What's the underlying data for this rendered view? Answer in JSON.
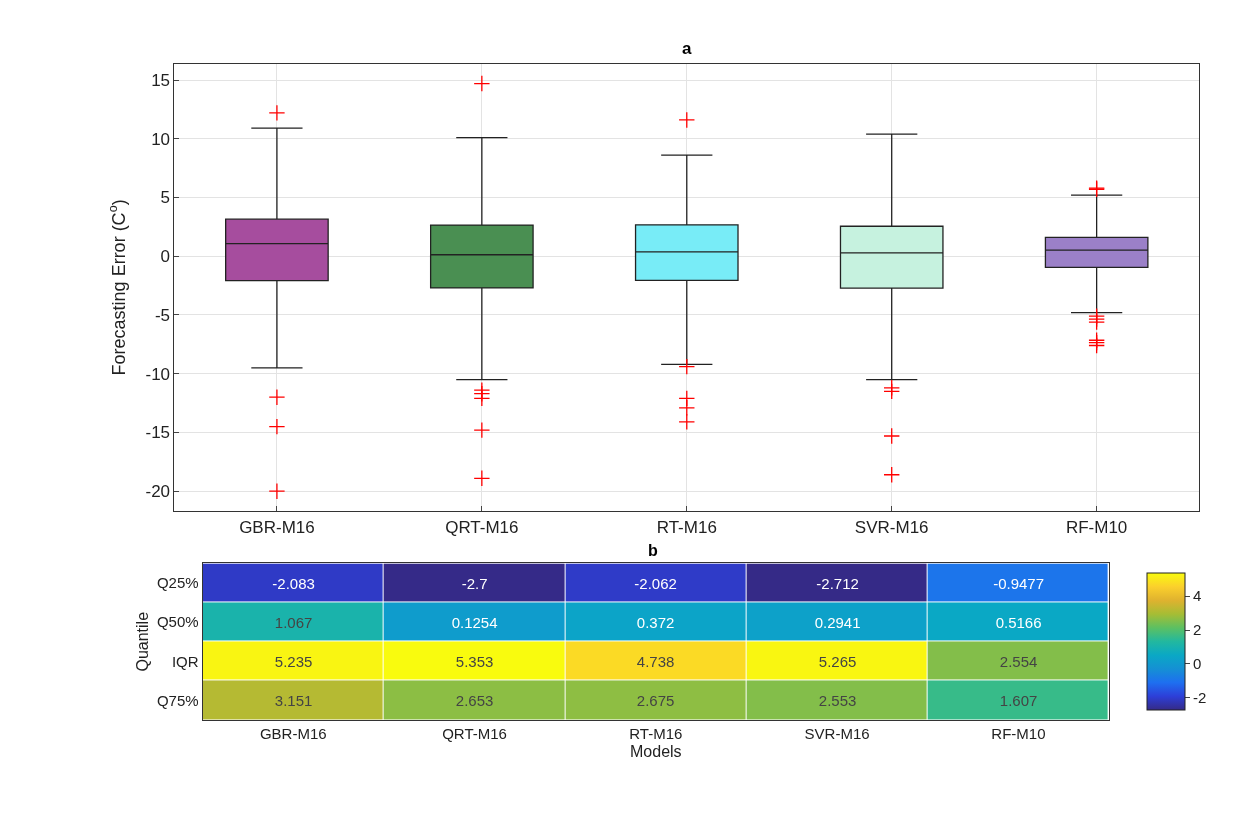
{
  "chart_data": [
    {
      "type": "box",
      "title": "a",
      "ylabel": "Forecasting Error (C$^{o}$)",
      "categories": [
        "GBR-M16",
        "QRT-M16",
        "RT-M16",
        "SVR-M16",
        "RF-M10"
      ],
      "colors": [
        "#a64d9e",
        "#4a8f52",
        "#78ecf7",
        "#c6f2df",
        "#9b80c8"
      ],
      "boxes": [
        {
          "low": -9.5,
          "q1": -2.083,
          "median": 1.067,
          "q3": 3.151,
          "high": 10.9,
          "outliers": [
            12.2,
            -12.0,
            -14.5,
            -20.0
          ]
        },
        {
          "low": -10.5,
          "q1": -2.7,
          "median": 0.1254,
          "q3": 2.653,
          "high": 10.1,
          "outliers": [
            14.7,
            -11.4,
            -11.7,
            -12.1,
            -14.8,
            -18.9
          ]
        },
        {
          "low": -9.2,
          "q1": -2.062,
          "median": 0.372,
          "q3": 2.675,
          "high": 8.6,
          "outliers": [
            11.6,
            -9.4,
            -12.1,
            -12.9,
            -14.1
          ]
        },
        {
          "low": -10.5,
          "q1": -2.712,
          "median": 0.2941,
          "q3": 2.553,
          "high": 10.4,
          "outliers": [
            -11.2,
            -11.5,
            -15.3,
            -18.6
          ]
        },
        {
          "low": -4.8,
          "q1": -0.9477,
          "median": 0.5166,
          "q3": 1.607,
          "high": 5.2,
          "outliers": [
            5.7,
            5.8,
            -5.1,
            -5.35,
            -5.6,
            -7.15,
            -7.35,
            -7.6
          ]
        }
      ],
      "marker": "cross",
      "ylim": [
        -21.7,
        16.4
      ],
      "yticks": [
        -20,
        -15,
        -10,
        -5,
        0,
        5,
        10,
        15
      ],
      "grid": true
    },
    {
      "type": "heatmap",
      "title": "b",
      "xlabel": "Models",
      "ylabel": "Quantile",
      "categories": [
        "GBR-M16",
        "QRT-M16",
        "RT-M16",
        "SVR-M16",
        "RF-M10"
      ],
      "y_categories": [
        "Q25%",
        "Q50%",
        "IQR",
        "Q75%"
      ],
      "cells": [
        [
          -2.083,
          -2.7,
          -2.062,
          -2.712,
          -0.9477
        ],
        [
          1.067,
          0.1254,
          0.372,
          0.2941,
          0.5166
        ],
        [
          5.235,
          5.353,
          4.738,
          5.265,
          2.554
        ],
        [
          3.151,
          2.653,
          2.675,
          2.553,
          1.607
        ]
      ],
      "clim": [
        -2.712,
        5.353
      ],
      "cticks": [
        -2,
        0,
        2,
        4
      ],
      "data_labels": true
    }
  ]
}
